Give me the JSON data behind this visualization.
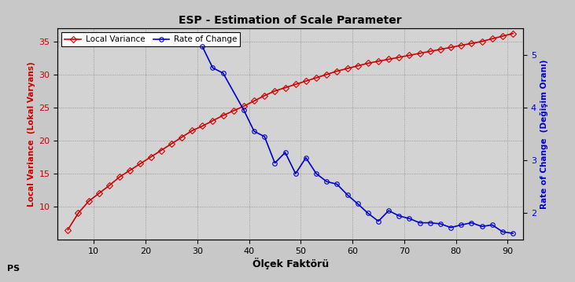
{
  "title": "ESP - Estimation of Scale Parameter",
  "xlabel": "Ölçek Faktörü",
  "ylabel_left": "Local Variance  (Lokal Varyans)",
  "ylabel_right": "Rate of Change  (Değişim Oranı)",
  "fig_facecolor": "#c8c8c8",
  "plot_bg_color": "#d3d3d3",
  "local_variance_color": "#cc0000",
  "rate_of_change_color": "#0000cc",
  "lv_x": [
    5,
    7,
    9,
    11,
    13,
    15,
    17,
    19,
    21,
    23,
    25,
    27,
    29,
    31,
    33,
    35,
    37,
    39,
    41,
    43,
    45,
    47,
    49,
    51,
    53,
    55,
    57,
    59,
    61,
    63,
    65,
    67,
    69,
    71,
    73,
    75,
    77,
    79,
    81,
    83,
    85,
    87,
    89,
    91
  ],
  "lv_y": [
    6.5,
    9.0,
    10.8,
    12.0,
    13.2,
    14.5,
    15.5,
    16.5,
    17.5,
    18.5,
    19.5,
    20.5,
    21.5,
    22.2,
    23.0,
    23.8,
    24.5,
    25.2,
    26.0,
    26.8,
    27.5,
    28.0,
    28.5,
    29.0,
    29.5,
    30.0,
    30.5,
    30.9,
    31.3,
    31.7,
    32.0,
    32.3,
    32.6,
    32.9,
    33.2,
    33.5,
    33.8,
    34.1,
    34.4,
    34.7,
    35.0,
    35.4,
    35.8,
    36.2
  ],
  "roc_x": [
    31,
    33,
    35,
    39,
    41,
    43,
    45,
    47,
    49,
    51,
    53,
    55,
    57,
    59,
    61,
    63,
    65,
    67,
    69,
    71,
    73,
    75,
    77,
    79,
    81,
    83,
    85,
    87,
    89,
    91
  ],
  "roc_y": [
    5.15,
    4.75,
    4.65,
    3.95,
    3.55,
    3.45,
    2.95,
    3.15,
    2.75,
    3.05,
    2.75,
    2.6,
    2.55,
    2.35,
    2.18,
    2.0,
    1.85,
    2.05,
    1.95,
    1.9,
    1.82,
    1.82,
    1.8,
    1.73,
    1.78,
    1.82,
    1.75,
    1.78,
    1.65,
    1.62
  ],
  "lv_ylim": [
    5,
    37
  ],
  "lv_yticks": [
    10,
    15,
    20,
    25,
    30,
    35
  ],
  "roc_ylim": [
    1.5,
    5.5
  ],
  "roc_yticks": [
    2,
    3,
    4,
    5
  ],
  "xlim": [
    3,
    93
  ],
  "xticks": [
    10,
    20,
    30,
    40,
    50,
    60,
    70,
    80,
    90
  ],
  "ps_text": "PS",
  "legend_labels": [
    "Local Variance",
    "Rate of Change"
  ],
  "marker_size": 4,
  "linewidth": 1.2
}
